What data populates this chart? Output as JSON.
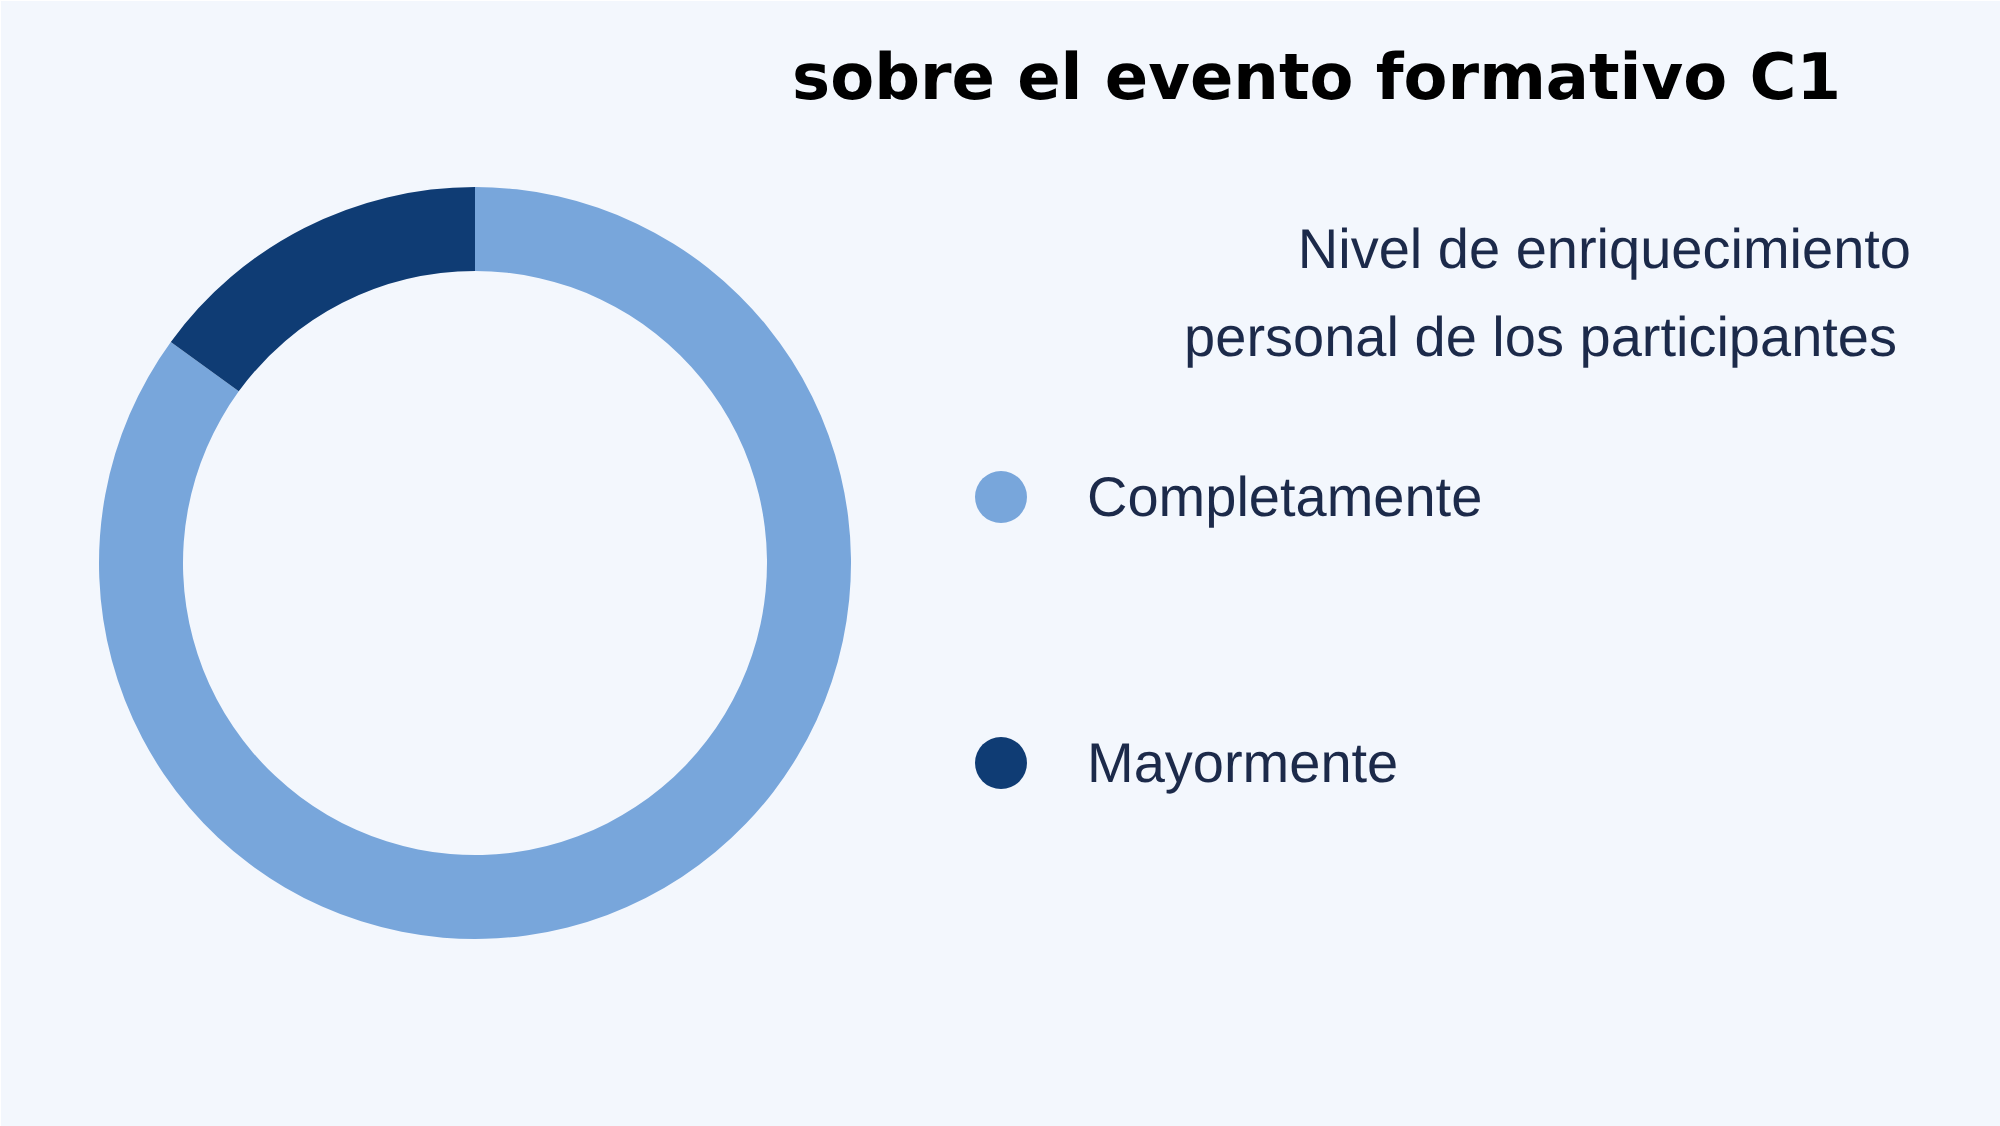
{
  "chart_data": {
    "type": "donut",
    "title": "sobre el evento formativo C1",
    "legend_title": "Nivel de enriquecimiento personal de los participantes",
    "categories": [
      "Completamente",
      "Mayormente"
    ],
    "values": [
      85,
      15
    ],
    "colors": [
      "#78a6db",
      "#0f3c74"
    ],
    "legend": "right"
  }
}
